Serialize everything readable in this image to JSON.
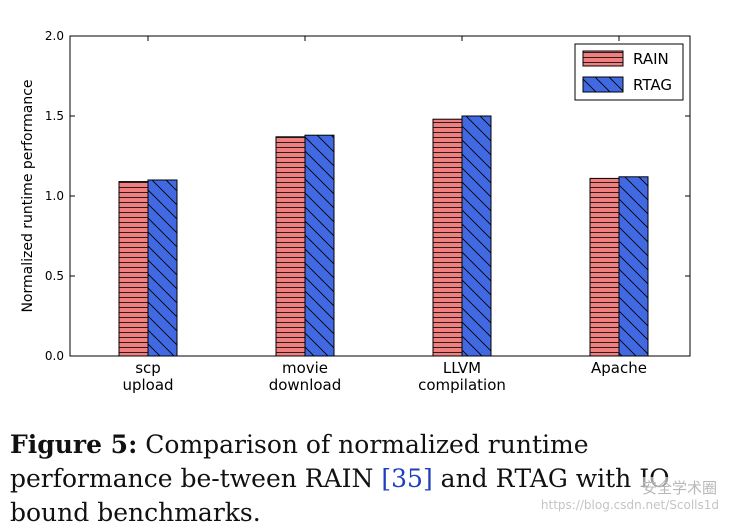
{
  "chart_data": {
    "type": "bar",
    "categories": [
      "scp\nupload",
      "movie\ndownload",
      "LLVM\ncompilation",
      "Apache"
    ],
    "series": [
      {
        "name": "RAIN",
        "values": [
          1.09,
          1.37,
          1.48,
          1.11
        ],
        "color": "#f08080",
        "hatch": "horizontal"
      },
      {
        "name": "RTAG",
        "values": [
          1.1,
          1.38,
          1.5,
          1.12
        ],
        "color": "#4169e1",
        "hatch": "backslash"
      }
    ],
    "ylabel": "Normalized runtime performance",
    "xlabel": "",
    "ylim": [
      0.0,
      2.0
    ],
    "yticks": [
      "0.0",
      "0.5",
      "1.0",
      "1.5",
      "2.0"
    ],
    "grid": false,
    "legend_position": "top-right"
  },
  "caption": {
    "figure_label": "Figure 5:",
    "text_1": " Comparison of normalized runtime performance be-tween R",
    "rain_sc": "AIN",
    "cite": "[35]",
    "text_2": " and R",
    "rtag_sc": "TAG",
    "text_3": " with IO bound benchmarks."
  },
  "watermark": {
    "text": "安全学术圈",
    "url": "https://blog.csdn.net/Scolls1d"
  }
}
